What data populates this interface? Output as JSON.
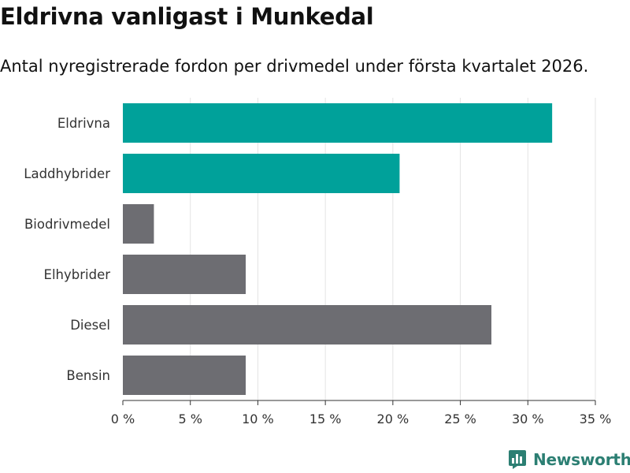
{
  "header": {
    "title": "Eldrivna vanligast i Munkedal",
    "subtitle": "Antal nyregistrerade fordon per drivmedel under första kvartalet 2026."
  },
  "chart_data": {
    "type": "bar",
    "orientation": "horizontal",
    "title": "Eldrivna vanligast i Munkedal",
    "subtitle": "Antal nyregistrerade fordon per drivmedel under första kvartalet 2026.",
    "xlabel": "",
    "ylabel": "",
    "categories": [
      "Eldrivna",
      "Laddhybrider",
      "Biodrivmedel",
      "Elhybrider",
      "Diesel",
      "Bensin"
    ],
    "values": [
      31.8,
      20.5,
      2.3,
      9.1,
      27.3,
      9.1
    ],
    "unit": "%",
    "colors": [
      "#00a19a",
      "#00a19a",
      "#6d6d72",
      "#6d6d72",
      "#6d6d72",
      "#6d6d72"
    ],
    "xlim": [
      0,
      35
    ],
    "ticks": [
      0,
      5,
      10,
      15,
      20,
      25,
      30,
      35
    ],
    "tick_labels": [
      "0 %",
      "5 %",
      "10 %",
      "15 %",
      "20 %",
      "25 %",
      "30 %",
      "35 %"
    ],
    "grid": true
  },
  "branding": {
    "name": "Newsworthy",
    "color": "#2c7f73"
  }
}
